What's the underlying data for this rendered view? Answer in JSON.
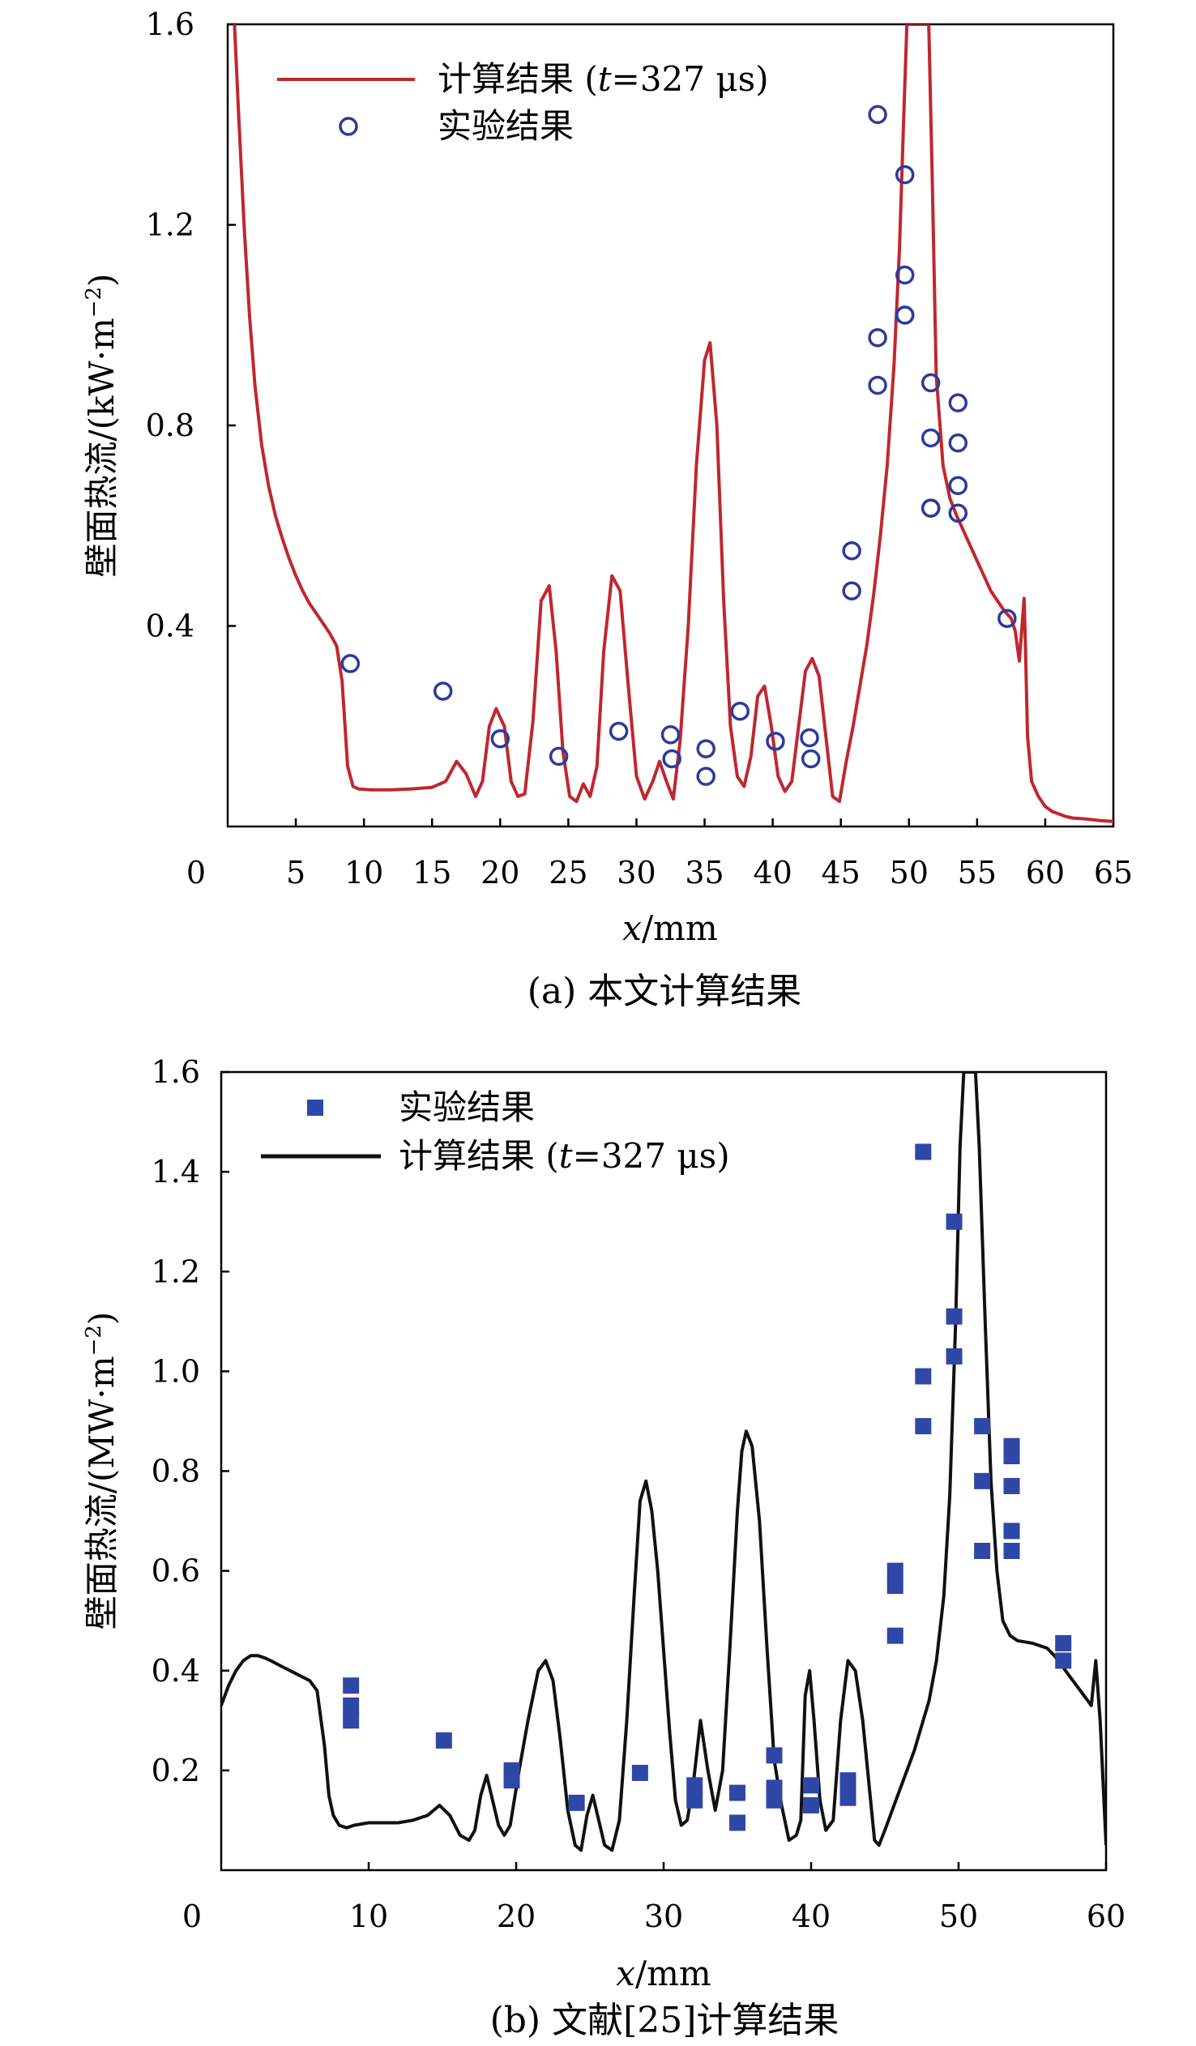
{
  "chart_data": [
    {
      "type": "line",
      "caption": "(a) 本文计算结果",
      "xlabel_italic": "x",
      "xlabel_unit": "/mm",
      "ylabel": "壁面热流/(kW·m",
      "ylabel_exp": "−2",
      "ylabel_close": ")",
      "xlim": [
        0,
        65
      ],
      "ylim": [
        0.0,
        1.6
      ],
      "x_origin_label": "0",
      "x_ticks": [
        5,
        10,
        15,
        20,
        25,
        30,
        35,
        40,
        45,
        50,
        55,
        60,
        65
      ],
      "y_ticks": [
        0.4,
        0.8,
        1.2,
        1.6
      ],
      "y_tick_labels": [
        "0.4",
        "0.8",
        "1.2",
        "1.6"
      ],
      "legend_position": "top-left",
      "legend_order": [
        "line",
        "points"
      ],
      "line_series": {
        "name_prefix": "计算结果 (",
        "name_t": "t",
        "name_suffix": "=327 μs)",
        "color": "#c0272d",
        "x": [
          0.5,
          0.8,
          1.2,
          1.6,
          2.0,
          2.5,
          3.0,
          3.5,
          4.0,
          4.5,
          5.0,
          5.5,
          6.0,
          6.5,
          7.0,
          7.5,
          8.0,
          8.4,
          8.8,
          9.2,
          9.6,
          10.5,
          12.0,
          13.5,
          15.0,
          16.0,
          16.8,
          17.5,
          18.2,
          18.7,
          19.2,
          19.7,
          20.3,
          20.8,
          21.3,
          21.8,
          22.4,
          23.0,
          23.6,
          24.1,
          24.6,
          25.1,
          25.6,
          26.1,
          26.6,
          27.1,
          27.6,
          28.2,
          28.8,
          29.4,
          30.0,
          30.6,
          31.2,
          31.7,
          32.2,
          32.7,
          33.2,
          33.8,
          34.4,
          35.0,
          35.4,
          35.9,
          36.4,
          36.9,
          37.4,
          37.9,
          38.4,
          38.9,
          39.4,
          39.9,
          40.4,
          40.9,
          41.4,
          41.9,
          42.4,
          42.9,
          43.4,
          43.9,
          44.4,
          44.9,
          45.4,
          45.9,
          46.4,
          46.9,
          47.4,
          47.9,
          48.4,
          48.9,
          49.3,
          49.6,
          49.85,
          50.0,
          50.3,
          51.2,
          51.45,
          51.7,
          52.0,
          52.5,
          53.0,
          53.5,
          54.0,
          54.5,
          55.0,
          55.5,
          56.0,
          56.5,
          57.0,
          57.5,
          57.8,
          58.1,
          58.3,
          58.45,
          58.55,
          58.7,
          59.0,
          59.5,
          60.0,
          60.5,
          61.0,
          61.5,
          62.0,
          63.0,
          64.0,
          65.0
        ],
        "y": [
          1.6,
          1.42,
          1.2,
          1.02,
          0.88,
          0.76,
          0.68,
          0.62,
          0.575,
          0.535,
          0.5,
          0.47,
          0.445,
          0.425,
          0.405,
          0.385,
          0.36,
          0.29,
          0.12,
          0.08,
          0.075,
          0.073,
          0.073,
          0.075,
          0.078,
          0.09,
          0.13,
          0.105,
          0.06,
          0.09,
          0.2,
          0.235,
          0.2,
          0.09,
          0.06,
          0.065,
          0.21,
          0.45,
          0.48,
          0.35,
          0.15,
          0.06,
          0.05,
          0.085,
          0.06,
          0.12,
          0.35,
          0.5,
          0.47,
          0.28,
          0.1,
          0.055,
          0.09,
          0.13,
          0.09,
          0.055,
          0.17,
          0.4,
          0.72,
          0.93,
          0.965,
          0.8,
          0.45,
          0.2,
          0.1,
          0.08,
          0.14,
          0.26,
          0.28,
          0.2,
          0.1,
          0.07,
          0.09,
          0.2,
          0.31,
          0.335,
          0.3,
          0.18,
          0.06,
          0.05,
          0.13,
          0.2,
          0.28,
          0.36,
          0.46,
          0.58,
          0.72,
          0.92,
          1.15,
          1.4,
          1.6,
          1.6,
          1.6,
          1.6,
          1.6,
          1.3,
          0.9,
          0.72,
          0.655,
          0.62,
          0.59,
          0.56,
          0.53,
          0.5,
          0.47,
          0.45,
          0.43,
          0.415,
          0.39,
          0.33,
          0.4,
          0.455,
          0.36,
          0.18,
          0.09,
          0.06,
          0.04,
          0.03,
          0.025,
          0.02,
          0.017,
          0.015,
          0.012,
          0.01
        ]
      },
      "points_series": {
        "name": "实验结果",
        "marker": "circle",
        "color": "#2a3b9f",
        "x": [
          9.0,
          15.8,
          20.0,
          24.3,
          28.7,
          32.5,
          32.6,
          35.1,
          35.1,
          37.6,
          40.2,
          42.7,
          42.8,
          45.8,
          45.8,
          47.7,
          47.7,
          47.7,
          49.7,
          49.7,
          49.7,
          49.7,
          51.6,
          51.6,
          51.6,
          51.6,
          53.6,
          53.6,
          53.6,
          53.6,
          57.2
        ],
        "y": [
          0.325,
          0.27,
          0.175,
          0.14,
          0.19,
          0.183,
          0.135,
          0.155,
          0.1,
          0.23,
          0.17,
          0.177,
          0.135,
          0.55,
          0.47,
          1.42,
          0.975,
          0.88,
          1.3,
          1.1,
          1.02,
          1.02,
          0.885,
          0.775,
          0.635,
          0.635,
          0.845,
          0.765,
          0.68,
          0.625,
          0.415
        ]
      }
    },
    {
      "type": "line",
      "caption": "(b) 文献[25]计算结果",
      "xlabel_italic": "x",
      "xlabel_unit": "/mm",
      "ylabel": "壁面热流/(MW·m",
      "ylabel_exp": "−2",
      "ylabel_close": ")",
      "xlim": [
        0,
        60
      ],
      "ylim": [
        0.0,
        1.6
      ],
      "x_origin_label": "0",
      "x_ticks": [
        10,
        20,
        30,
        40,
        50,
        60
      ],
      "y_ticks": [
        0.2,
        0.4,
        0.6,
        0.8,
        1.0,
        1.2,
        1.4,
        1.6
      ],
      "y_tick_labels": [
        "0.2",
        "0.4",
        "0.6",
        "0.8",
        "1.0",
        "1.2",
        "1.4",
        "1.6"
      ],
      "legend_position": "top-left",
      "legend_order": [
        "points",
        "line"
      ],
      "line_series": {
        "name_prefix": "计算结果 (",
        "name_t": "t",
        "name_suffix": "=327 μs)",
        "color": "#111111",
        "x": [
          0.0,
          0.5,
          1.0,
          1.5,
          2.0,
          2.5,
          3.0,
          3.5,
          4.0,
          5.0,
          6.0,
          6.5,
          7.0,
          7.3,
          7.6,
          8.0,
          8.5,
          9.0,
          10.0,
          11.0,
          12.0,
          13.0,
          14.0,
          14.8,
          15.5,
          16.2,
          16.8,
          17.2,
          17.6,
          18.0,
          18.4,
          18.8,
          19.2,
          19.6,
          20.2,
          20.8,
          21.5,
          22.0,
          22.5,
          23.0,
          23.5,
          24.0,
          24.4,
          24.8,
          25.2,
          25.6,
          26.0,
          26.5,
          27.0,
          27.5,
          28.0,
          28.4,
          28.8,
          29.2,
          29.6,
          30.0,
          30.4,
          30.8,
          31.2,
          31.6,
          32.0,
          32.5,
          33.0,
          33.5,
          34.0,
          34.5,
          35.0,
          35.3,
          35.6,
          36.0,
          36.5,
          37.0,
          37.5,
          38.0,
          38.5,
          39.0,
          39.3,
          39.6,
          39.9,
          40.2,
          40.6,
          41.0,
          41.5,
          42.0,
          42.5,
          43.0,
          43.5,
          44.0,
          44.3,
          44.6,
          45.0,
          45.5,
          46.0,
          47.0,
          48.0,
          48.5,
          49.0,
          49.4,
          49.8,
          50.1,
          50.35,
          51.15,
          51.4,
          51.8,
          52.2,
          52.6,
          53.0,
          53.5,
          54.0,
          55.0,
          56.0,
          56.5,
          57.0,
          57.5,
          58.0,
          58.5,
          59.0,
          59.3,
          59.6,
          60.0
        ],
        "y": [
          0.33,
          0.37,
          0.4,
          0.42,
          0.43,
          0.43,
          0.425,
          0.418,
          0.41,
          0.395,
          0.38,
          0.36,
          0.25,
          0.15,
          0.11,
          0.09,
          0.085,
          0.09,
          0.095,
          0.095,
          0.095,
          0.1,
          0.11,
          0.13,
          0.11,
          0.07,
          0.06,
          0.08,
          0.15,
          0.19,
          0.14,
          0.09,
          0.07,
          0.09,
          0.2,
          0.3,
          0.4,
          0.42,
          0.38,
          0.26,
          0.12,
          0.05,
          0.04,
          0.11,
          0.15,
          0.1,
          0.05,
          0.04,
          0.1,
          0.3,
          0.55,
          0.74,
          0.78,
          0.72,
          0.6,
          0.44,
          0.28,
          0.14,
          0.09,
          0.1,
          0.17,
          0.3,
          0.2,
          0.12,
          0.2,
          0.45,
          0.72,
          0.84,
          0.88,
          0.85,
          0.7,
          0.45,
          0.22,
          0.13,
          0.06,
          0.07,
          0.1,
          0.35,
          0.4,
          0.3,
          0.14,
          0.08,
          0.1,
          0.3,
          0.42,
          0.4,
          0.3,
          0.15,
          0.06,
          0.05,
          0.08,
          0.12,
          0.16,
          0.24,
          0.34,
          0.42,
          0.55,
          0.75,
          1.1,
          1.45,
          1.6,
          1.6,
          1.45,
          1.1,
          0.78,
          0.6,
          0.5,
          0.47,
          0.46,
          0.455,
          0.445,
          0.43,
          0.41,
          0.39,
          0.37,
          0.35,
          0.33,
          0.42,
          0.3,
          0.05
        ],
        "stop_x": 60.0
      },
      "points_series": {
        "name": "实验结果",
        "marker": "square",
        "color": "#2f47a6",
        "x": [
          8.8,
          8.8,
          8.8,
          15.1,
          19.7,
          19.7,
          24.1,
          28.4,
          32.1,
          32.1,
          35.0,
          35.0,
          37.5,
          37.5,
          37.5,
          40.0,
          40.0,
          42.5,
          42.5,
          42.5,
          45.7,
          45.7,
          45.7,
          47.6,
          47.6,
          47.6,
          49.7,
          49.7,
          49.7,
          51.6,
          51.6,
          51.6,
          53.6,
          53.6,
          53.6,
          53.6,
          53.6,
          57.1,
          57.1
        ],
        "y": [
          0.37,
          0.33,
          0.3,
          0.26,
          0.2,
          0.18,
          0.135,
          0.195,
          0.17,
          0.14,
          0.155,
          0.095,
          0.23,
          0.165,
          0.14,
          0.17,
          0.13,
          0.18,
          0.165,
          0.145,
          0.6,
          0.57,
          0.47,
          1.44,
          0.99,
          0.89,
          1.3,
          1.11,
          1.03,
          0.89,
          0.78,
          0.64,
          0.85,
          0.83,
          0.77,
          0.68,
          0.64,
          0.455,
          0.42
        ]
      }
    }
  ]
}
